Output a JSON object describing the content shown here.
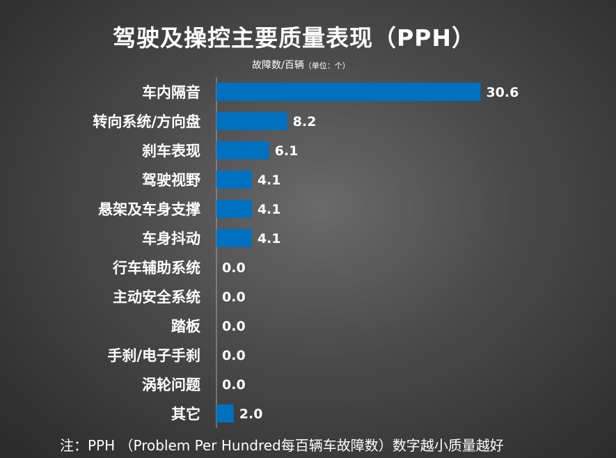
{
  "chart_data": {
    "type": "bar",
    "orientation": "horizontal",
    "title": "驾驶及操控主要质量表现（PPH）",
    "subtitle": "故障数/百辆",
    "unit_note": "（单位：个）",
    "categories": [
      "车内隔音",
      "转向系统/方向盘",
      "刹车表现",
      "驾驶视野",
      "悬架及车身支撑",
      "车身抖动",
      "行车辅助系统",
      "主动安全系统",
      "踏板",
      "手刹/电子手刹",
      "涡轮问题",
      "其它"
    ],
    "values": [
      30.6,
      8.2,
      6.1,
      4.1,
      4.1,
      4.1,
      0.0,
      0.0,
      0.0,
      0.0,
      0.0,
      2.0
    ],
    "value_labels": [
      "30.6",
      "8.2",
      "6.1",
      "4.1",
      "4.1",
      "4.1",
      "0.0",
      "0.0",
      "0.0",
      "0.0",
      "0.0",
      "2.0"
    ],
    "bar_color": "#0070c0",
    "axis_line_color": "#a6a6a6",
    "grid": false,
    "legend": "none"
  },
  "footnote": "注：PPH （Problem Per Hundred每百辆车故障数）数字越小质量越好"
}
